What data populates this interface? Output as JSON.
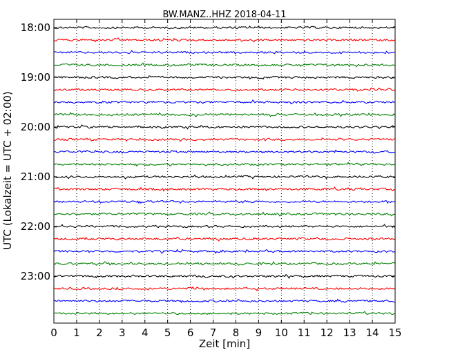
{
  "chart_data": {
    "type": "line",
    "title": "BW.MANZ..HHZ 2018-04-11",
    "xlabel": "Zeit  [min]",
    "ylabel": "UTC (Lokalzeit = UTC + 02:00)",
    "xlim": [
      0,
      15
    ],
    "x_ticks": [
      0,
      1,
      2,
      3,
      4,
      5,
      6,
      7,
      8,
      9,
      10,
      11,
      12,
      13,
      14,
      15
    ],
    "x_tick_labels": [
      "0",
      "1",
      "2",
      "3",
      "4",
      "5",
      "6",
      "7",
      "8",
      "9",
      "10",
      "11",
      "12",
      "13",
      "14",
      "15"
    ],
    "y_tick_labels": [
      "18:00",
      "19:00",
      "20:00",
      "21:00",
      "22:00",
      "23:00"
    ],
    "grid": "vertical-dotted",
    "trace_colors": [
      "#000000",
      "#ff0000",
      "#0000ff",
      "#008000"
    ],
    "series": [
      {
        "start": "18:00",
        "color": "#000000"
      },
      {
        "start": "18:15",
        "color": "#ff0000"
      },
      {
        "start": "18:30",
        "color": "#0000ff"
      },
      {
        "start": "18:45",
        "color": "#008000"
      },
      {
        "start": "19:00",
        "color": "#000000"
      },
      {
        "start": "19:15",
        "color": "#ff0000"
      },
      {
        "start": "19:30",
        "color": "#0000ff"
      },
      {
        "start": "19:45",
        "color": "#008000"
      },
      {
        "start": "20:00",
        "color": "#000000"
      },
      {
        "start": "20:15",
        "color": "#ff0000"
      },
      {
        "start": "20:30",
        "color": "#0000ff"
      },
      {
        "start": "20:45",
        "color": "#008000"
      },
      {
        "start": "21:00",
        "color": "#000000"
      },
      {
        "start": "21:15",
        "color": "#ff0000"
      },
      {
        "start": "21:30",
        "color": "#0000ff"
      },
      {
        "start": "21:45",
        "color": "#008000"
      },
      {
        "start": "22:00",
        "color": "#000000"
      },
      {
        "start": "22:15",
        "color": "#ff0000"
      },
      {
        "start": "22:30",
        "color": "#0000ff"
      },
      {
        "start": "22:45",
        "color": "#008000"
      },
      {
        "start": "23:00",
        "color": "#000000"
      },
      {
        "start": "23:15",
        "color": "#ff0000"
      },
      {
        "start": "23:30",
        "color": "#0000ff"
      },
      {
        "start": "23:45",
        "color": "#008000"
      }
    ]
  }
}
